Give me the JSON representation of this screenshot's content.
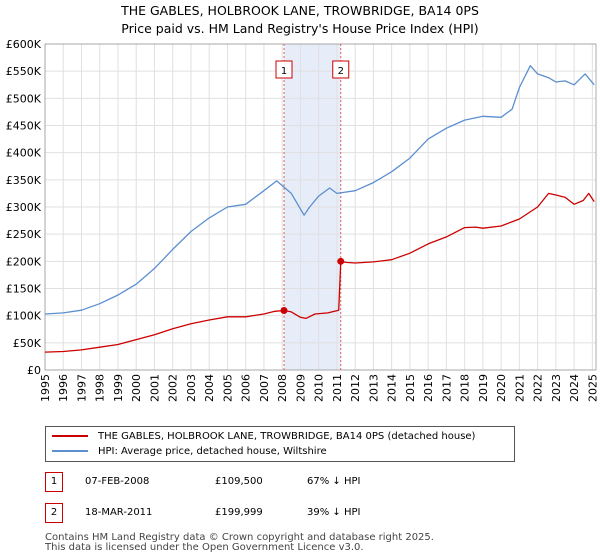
{
  "title_line1": "THE GABLES, HOLBROOK LANE, TROWBRIDGE, BA14 0PS",
  "title_line2": "Price paid vs. HM Land Registry's House Price Index (HPI)",
  "chart_data": {
    "type": "line",
    "xlim": [
      1995,
      2025.2
    ],
    "ylim": [
      0,
      600000
    ],
    "ytick_values": [
      0,
      50000,
      100000,
      150000,
      200000,
      250000,
      300000,
      350000,
      400000,
      450000,
      500000,
      550000,
      600000
    ],
    "ytick_labels": [
      "£0",
      "£50K",
      "£100K",
      "£150K",
      "£200K",
      "£250K",
      "£300K",
      "£350K",
      "£400K",
      "£450K",
      "£500K",
      "£550K",
      "£600K"
    ],
    "xtick_values": [
      1995,
      1996,
      1997,
      1998,
      1999,
      2000,
      2001,
      2002,
      2003,
      2004,
      2005,
      2006,
      2007,
      2008,
      2009,
      2010,
      2011,
      2012,
      2013,
      2014,
      2015,
      2016,
      2017,
      2018,
      2019,
      2020,
      2021,
      2022,
      2023,
      2024,
      2025
    ],
    "xtick_labels": [
      "1995",
      "1996",
      "1997",
      "1998",
      "1999",
      "2000",
      "2001",
      "2002",
      "2003",
      "2004",
      "2005",
      "2006",
      "2007",
      "2008",
      "2009",
      "2010",
      "2011",
      "2012",
      "2013",
      "2014",
      "2015",
      "2016",
      "2017",
      "2018",
      "2019",
      "2020",
      "2021",
      "2022",
      "2023",
      "2024",
      "2025"
    ],
    "grid": true,
    "series": [
      {
        "name": "THE GABLES, HOLBROOK LANE, TROWBRIDGE, BA14 0PS (detached house)",
        "color": "#cc0000",
        "x": [
          1995,
          1996,
          1997,
          1998,
          1999,
          2000,
          2001,
          2002,
          2003,
          2004,
          2005,
          2006,
          2007,
          2007.6,
          2008.1,
          2008.5,
          2009,
          2009.3,
          2009.8,
          2010.5,
          2011.1,
          2011.21,
          2011.5,
          2012,
          2013,
          2014,
          2015,
          2016,
          2017,
          2018,
          2018.6,
          2019,
          2020,
          2021,
          2022,
          2022.6,
          2023,
          2023.5,
          2024,
          2024.5,
          2024.8,
          2025.1
        ],
        "values": [
          33000,
          34000,
          37000,
          42000,
          47000,
          56000,
          65000,
          76000,
          85000,
          92000,
          98000,
          98000,
          103000,
          108000,
          109500,
          107000,
          97000,
          95000,
          103000,
          105000,
          109999,
          199999,
          198000,
          197000,
          199000,
          203000,
          215000,
          232000,
          245000,
          262000,
          263000,
          261000,
          265000,
          278000,
          300000,
          325000,
          322000,
          318000,
          305000,
          312000,
          325000,
          310000
        ]
      },
      {
        "name": "HPI: Average price, detached house, Wiltshire",
        "color": "#5b8fd0",
        "x": [
          1995,
          1996,
          1997,
          1998,
          1999,
          2000,
          2001,
          2002,
          2003,
          2004,
          2005,
          2006,
          2007,
          2007.7,
          2008.5,
          2009.2,
          2009.5,
          2010,
          2010.6,
          2011,
          2012,
          2013,
          2014,
          2015,
          2016,
          2017,
          2018,
          2019,
          2020,
          2020.6,
          2021,
          2021.6,
          2022,
          2022.6,
          2023,
          2023.5,
          2024,
          2024.6,
          2025.1
        ],
        "values": [
          103000,
          105000,
          110000,
          122000,
          138000,
          158000,
          187000,
          222000,
          255000,
          280000,
          300000,
          305000,
          330000,
          348000,
          325000,
          285000,
          300000,
          320000,
          335000,
          325000,
          330000,
          345000,
          365000,
          390000,
          425000,
          445000,
          460000,
          467000,
          465000,
          480000,
          520000,
          560000,
          545000,
          538000,
          530000,
          532000,
          525000,
          545000,
          525000
        ]
      }
    ],
    "transactions": [
      {
        "label": "1",
        "x": 2008.1,
        "value": 109500
      },
      {
        "label": "2",
        "x": 2011.21,
        "value": 199999
      }
    ],
    "shade_range": [
      2008.1,
      2011.21
    ]
  },
  "legend": {
    "item1": "THE GABLES, HOLBROOK LANE, TROWBRIDGE, BA14 0PS (detached house)",
    "item2": "HPI: Average price, detached house, Wiltshire"
  },
  "table": [
    {
      "num": "1",
      "date": "07-FEB-2008",
      "price": "£109,500",
      "pct": "67% ↓ HPI"
    },
    {
      "num": "2",
      "date": "18-MAR-2011",
      "price": "£199,999",
      "pct": "39% ↓ HPI"
    }
  ],
  "footer_line1": "Contains HM Land Registry data © Crown copyright and database right 2025.",
  "footer_line2": "This data is licensed under the Open Government Licence v3.0."
}
